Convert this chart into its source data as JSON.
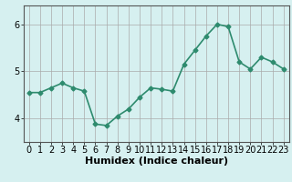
{
  "x": [
    0,
    1,
    2,
    3,
    4,
    5,
    6,
    7,
    8,
    9,
    10,
    11,
    12,
    13,
    14,
    15,
    16,
    17,
    18,
    19,
    20,
    21,
    22,
    23
  ],
  "y": [
    4.55,
    4.55,
    4.65,
    4.75,
    4.65,
    4.58,
    3.88,
    3.85,
    4.05,
    4.2,
    4.45,
    4.65,
    4.62,
    4.58,
    5.15,
    5.45,
    5.75,
    6.0,
    5.95,
    5.2,
    5.05,
    5.3,
    5.2,
    5.05
  ],
  "line_color": "#2e8b6e",
  "marker": "D",
  "marker_size": 2.5,
  "bg_color": "#d6f0f0",
  "grid_color": "#aaaaaa",
  "xlabel": "Humidex (Indice chaleur)",
  "xlabel_fontsize": 8,
  "tick_fontsize": 7,
  "ylim": [
    3.5,
    6.4
  ],
  "yticks": [
    4,
    5,
    6
  ],
  "xlim": [
    -0.5,
    23.5
  ],
  "line_width": 1.2,
  "spine_color": "#555555"
}
